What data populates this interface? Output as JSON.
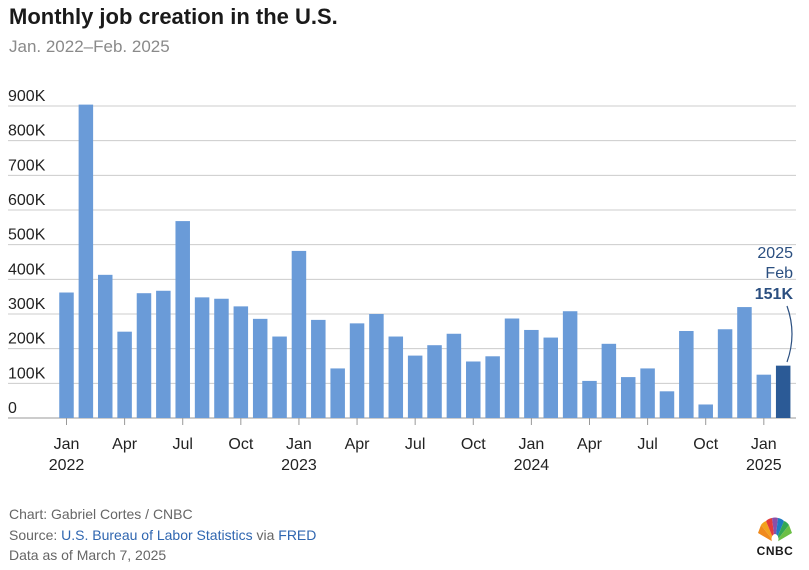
{
  "title": "Monthly job creation in the U.S.",
  "subtitle": "Jan. 2022–Feb. 2025",
  "colors": {
    "bar": "#6a9bd8",
    "highlight": "#2b5a96",
    "annotation": "#2b4f80",
    "grid": "#cccccc"
  },
  "annotation": {
    "line1": "2025",
    "line2": "Feb",
    "value": "151K"
  },
  "footer": {
    "credit": "Chart: Gabriel Cortes / CNBC",
    "source_prefix": "Source: ",
    "source_link1": "U.S. Bureau of Labor Statistics",
    "source_via": " via ",
    "source_link2": "FRED",
    "data_as_of": "Data as of March 7, 2025"
  },
  "logo": {
    "icon": "cnbc-peacock-icon",
    "text": "CNBC"
  },
  "chart_data": {
    "type": "bar",
    "ylim": [
      0,
      900000
    ],
    "yticks": [
      0,
      100000,
      200000,
      300000,
      400000,
      500000,
      600000,
      700000,
      800000,
      900000
    ],
    "ytick_labels": [
      "0",
      "100K",
      "200K",
      "300K",
      "400K",
      "500K",
      "600K",
      "700K",
      "800K",
      "900K"
    ],
    "grid": true,
    "categories": [
      "Jan 2022",
      "Feb 2022",
      "Mar 2022",
      "Apr 2022",
      "May 2022",
      "Jun 2022",
      "Jul 2022",
      "Aug 2022",
      "Sep 2022",
      "Oct 2022",
      "Nov 2022",
      "Dec 2022",
      "Jan 2023",
      "Feb 2023",
      "Mar 2023",
      "Apr 2023",
      "May 2023",
      "Jun 2023",
      "Jul 2023",
      "Aug 2023",
      "Sep 2023",
      "Oct 2023",
      "Nov 2023",
      "Dec 2023",
      "Jan 2024",
      "Feb 2024",
      "Mar 2024",
      "Apr 2024",
      "May 2024",
      "Jun 2024",
      "Jul 2024",
      "Aug 2024",
      "Sep 2024",
      "Oct 2024",
      "Nov 2024",
      "Dec 2024",
      "Jan 2025",
      "Feb 2025"
    ],
    "values": [
      362000,
      904000,
      413000,
      249000,
      360000,
      367000,
      568000,
      348000,
      344000,
      322000,
      286000,
      235000,
      482000,
      283000,
      143000,
      273000,
      300000,
      235000,
      180000,
      210000,
      243000,
      163000,
      178000,
      287000,
      254000,
      232000,
      308000,
      107000,
      214000,
      118000,
      143000,
      77000,
      251000,
      39000,
      256000,
      320000,
      125000,
      151000
    ],
    "highlight_index": 37,
    "xtick_labels": [
      {
        "index": 0,
        "month": "Jan",
        "year": "2022"
      },
      {
        "index": 3,
        "month": "Apr",
        "year": ""
      },
      {
        "index": 6,
        "month": "Jul",
        "year": ""
      },
      {
        "index": 9,
        "month": "Oct",
        "year": ""
      },
      {
        "index": 12,
        "month": "Jan",
        "year": "2023"
      },
      {
        "index": 15,
        "month": "Apr",
        "year": ""
      },
      {
        "index": 18,
        "month": "Jul",
        "year": ""
      },
      {
        "index": 21,
        "month": "Oct",
        "year": ""
      },
      {
        "index": 24,
        "month": "Jan",
        "year": "2024"
      },
      {
        "index": 27,
        "month": "Apr",
        "year": ""
      },
      {
        "index": 30,
        "month": "Jul",
        "year": ""
      },
      {
        "index": 33,
        "month": "Oct",
        "year": ""
      },
      {
        "index": 36,
        "month": "Jan",
        "year": "2025"
      }
    ]
  }
}
